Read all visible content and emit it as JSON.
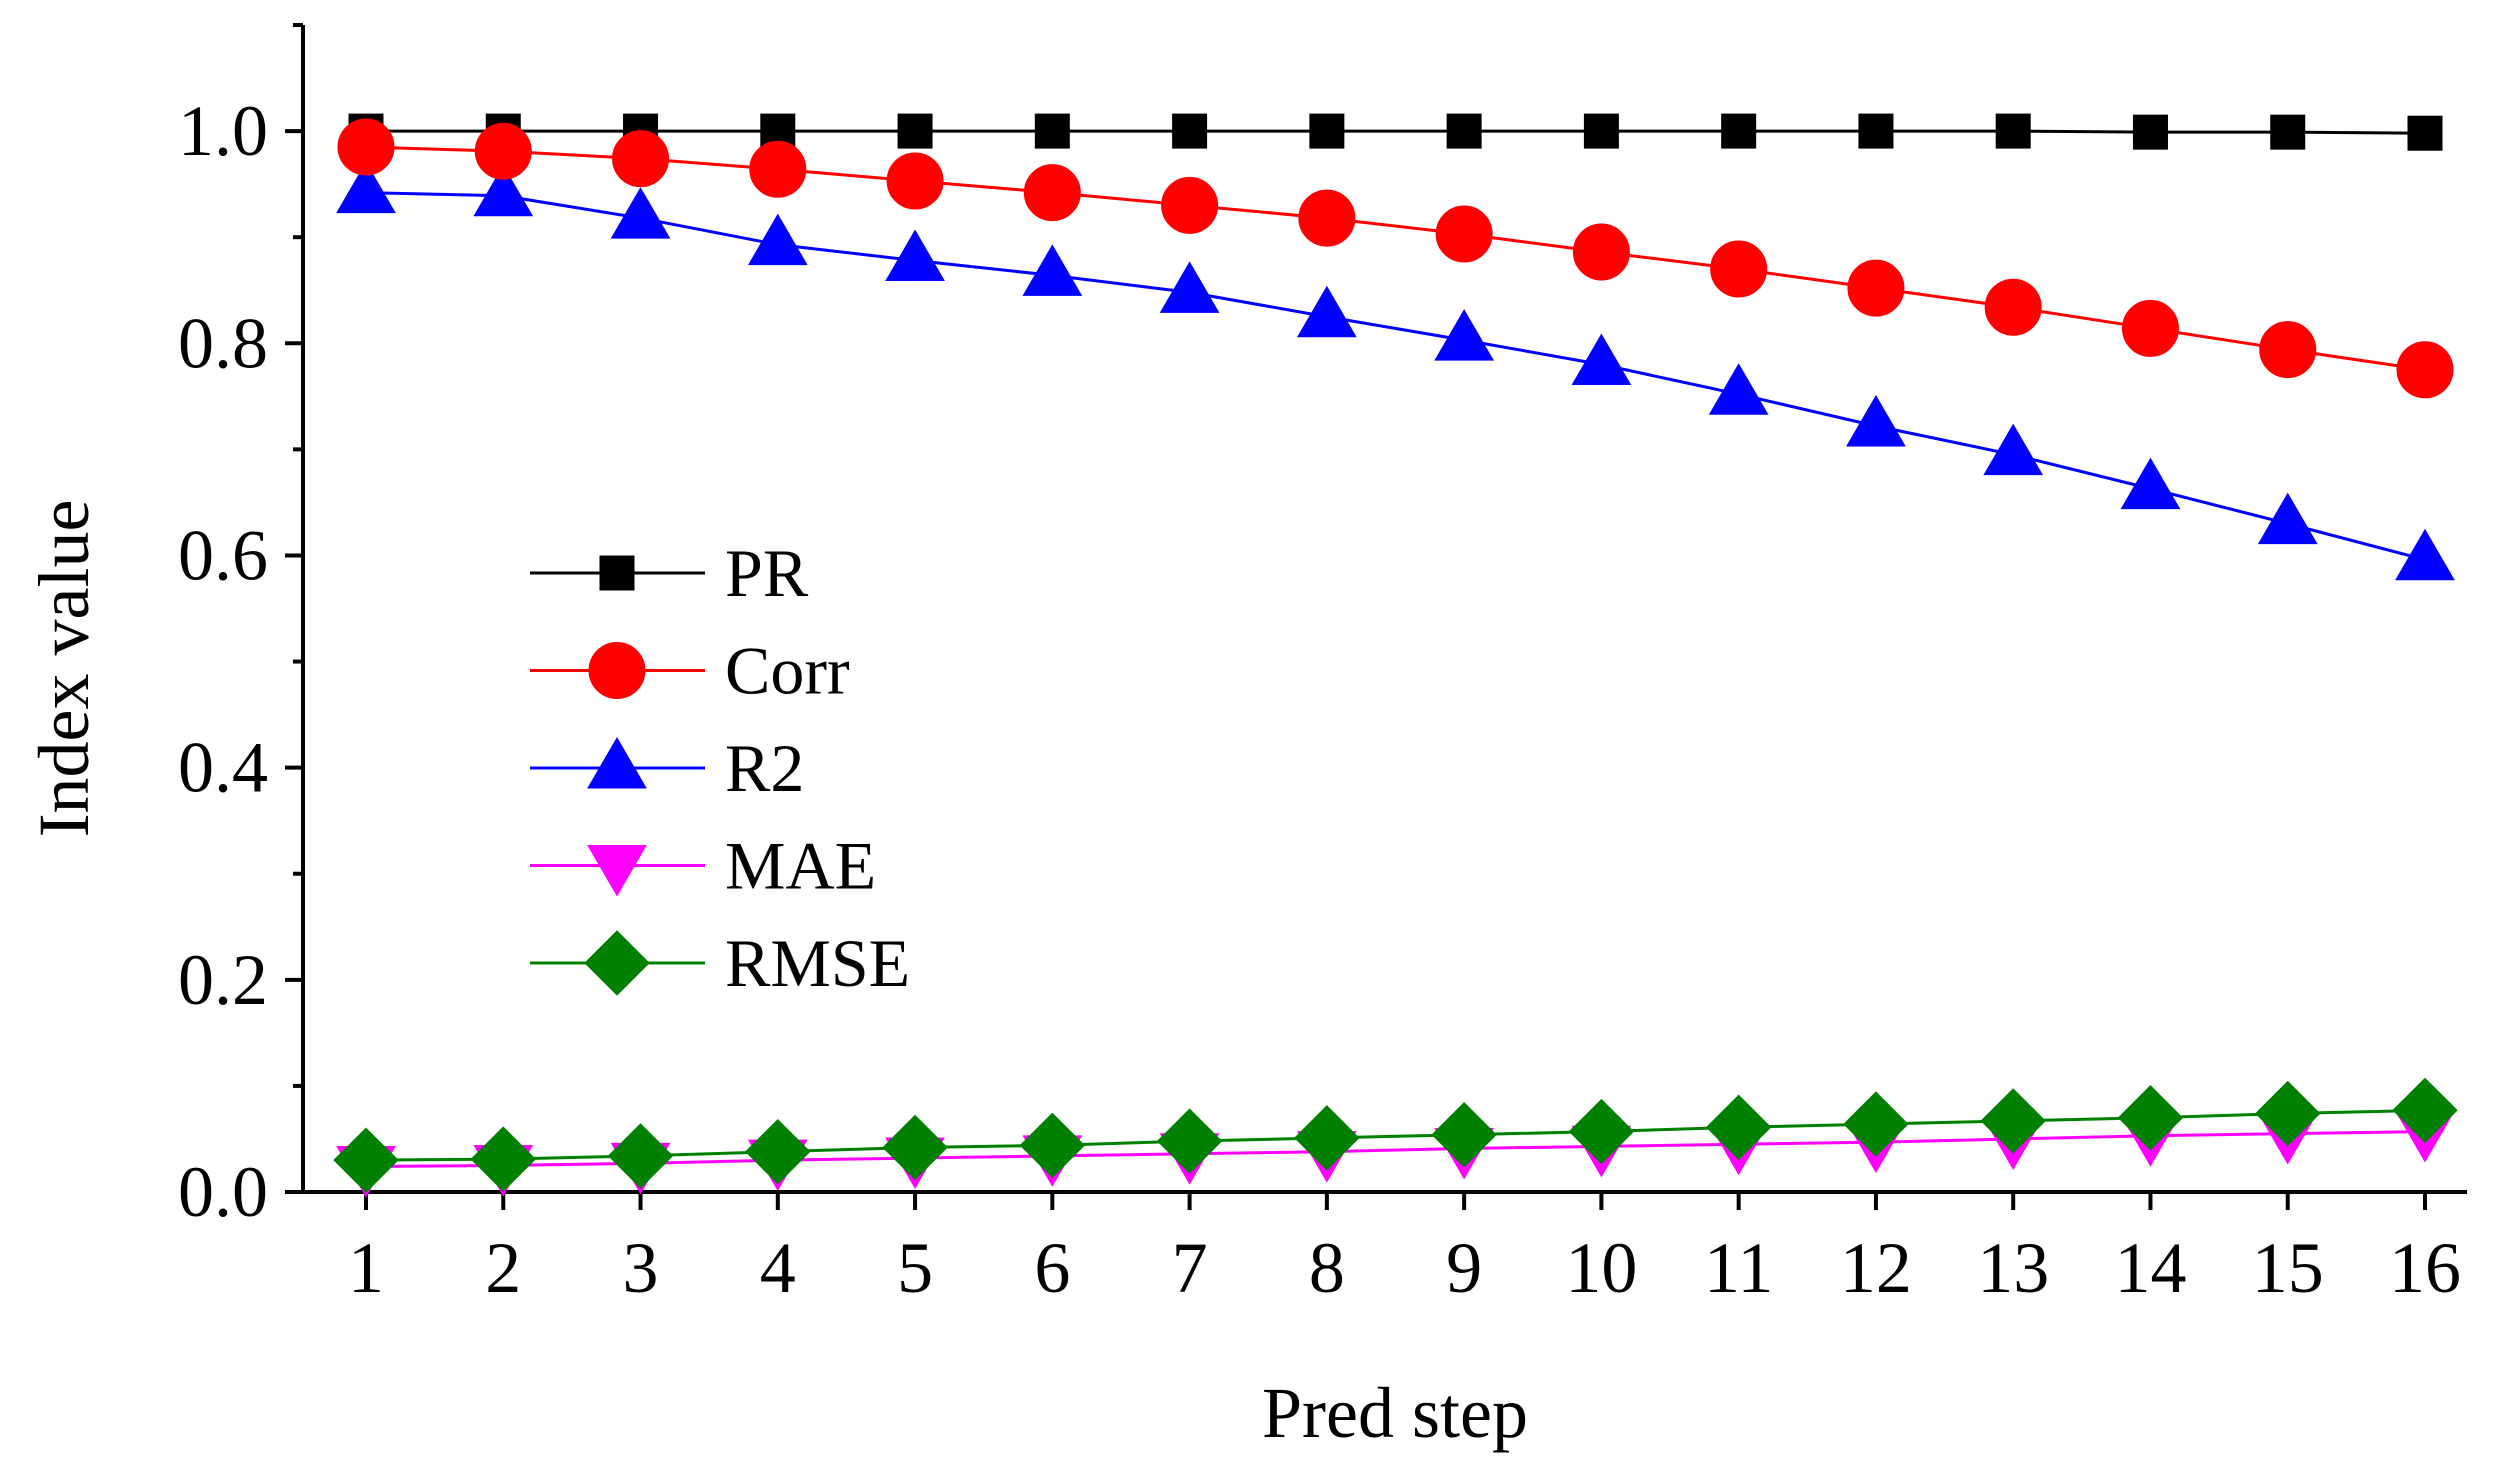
{
  "chart_data": {
    "type": "line",
    "title": "",
    "xlabel": "Pred step",
    "ylabel": "Index value",
    "x": [
      1,
      2,
      3,
      4,
      5,
      6,
      7,
      8,
      9,
      10,
      11,
      12,
      13,
      14,
      15,
      16
    ],
    "xticks": [
      "1",
      "2",
      "3",
      "4",
      "5",
      "6",
      "7",
      "8",
      "9",
      "10",
      "11",
      "12",
      "13",
      "14",
      "15",
      "16"
    ],
    "yticks": [
      "0.0",
      "0.2",
      "0.4",
      "0.6",
      "0.8",
      "1.0"
    ],
    "ylim": [
      0,
      1.1
    ],
    "grid": false,
    "legend_position": "center-left",
    "series": [
      {
        "name": "PR",
        "marker": "square",
        "color": "#000000",
        "values": [
          1.0,
          1.0,
          1.0,
          1.0,
          1.0,
          1.0,
          1.0,
          1.0,
          1.0,
          1.0,
          1.0,
          1.0,
          1.0,
          0.999,
          0.999,
          0.998
        ]
      },
      {
        "name": "Corr",
        "marker": "circle",
        "color": "#ff0000",
        "values": [
          0.985,
          0.981,
          0.974,
          0.964,
          0.953,
          0.942,
          0.93,
          0.918,
          0.903,
          0.886,
          0.87,
          0.852,
          0.834,
          0.814,
          0.794,
          0.775
        ]
      },
      {
        "name": "R2",
        "marker": "triangle-up",
        "color": "#0000ff",
        "values": [
          0.942,
          0.939,
          0.918,
          0.893,
          0.878,
          0.864,
          0.848,
          0.825,
          0.803,
          0.78,
          0.752,
          0.722,
          0.695,
          0.663,
          0.63,
          0.596
        ]
      },
      {
        "name": "MAE",
        "marker": "triangle-down",
        "color": "#ff00ff",
        "values": [
          0.024,
          0.025,
          0.027,
          0.03,
          0.032,
          0.034,
          0.036,
          0.038,
          0.041,
          0.043,
          0.045,
          0.047,
          0.05,
          0.053,
          0.055,
          0.057
        ]
      },
      {
        "name": "RMSE",
        "marker": "diamond",
        "color": "#008000",
        "values": [
          0.03,
          0.031,
          0.034,
          0.038,
          0.042,
          0.044,
          0.048,
          0.051,
          0.054,
          0.057,
          0.061,
          0.064,
          0.067,
          0.07,
          0.074,
          0.077
        ]
      }
    ]
  }
}
